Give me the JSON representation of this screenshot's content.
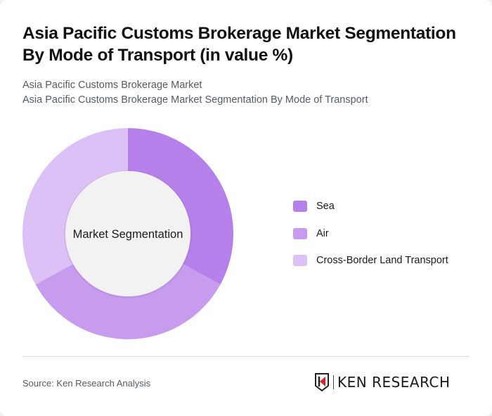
{
  "header": {
    "title": "Asia Pacific Customs Brokerage Market Segmentation By Mode of Transport (in value %)",
    "subtitle_1": "Asia Pacific Customs Brokerage Market",
    "subtitle_2": "Asia Pacific Customs Brokerage Market Segmentation By Mode of Transport"
  },
  "chart": {
    "center_label": "Market Segmentation"
  },
  "legend": [
    {
      "label": "Sea",
      "color": "#b580ea"
    },
    {
      "label": "Air",
      "color": "#c79cee"
    },
    {
      "label": "Cross-Border Land Transport",
      "color": "#dcc1f6"
    }
  ],
  "footer": {
    "source": "Source: Ken Research Analysis",
    "logo_text": "KEN RESEARCH"
  },
  "chart_data": {
    "type": "pie",
    "subtype": "donut",
    "title": "Asia Pacific Customs Brokerage Market Segmentation By Mode of Transport (in value %)",
    "center_label": "Market Segmentation",
    "categories": [
      "Sea",
      "Air",
      "Cross-Border Land Transport"
    ],
    "values": [
      33,
      34,
      33
    ],
    "colors": [
      "#b580ea",
      "#c79cee",
      "#dcc1f6"
    ],
    "legend_position": "right",
    "unit": "%"
  }
}
